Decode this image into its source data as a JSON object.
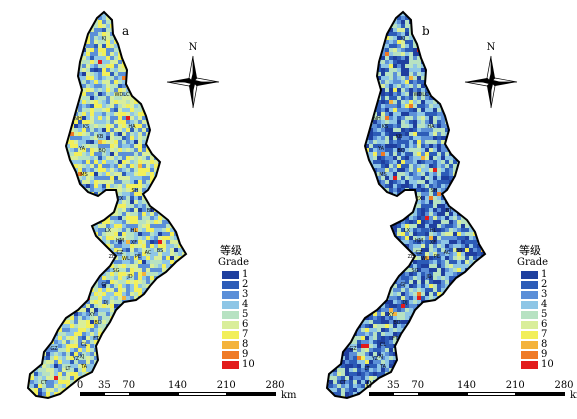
{
  "panels": [
    {
      "id": "a",
      "label": "a",
      "dominant_grades": [
        5,
        6,
        4,
        7,
        3
      ],
      "seed": 11,
      "place_codes": [
        "KJ",
        "WDLC",
        "NH",
        "KS",
        "KB",
        "HA",
        "YA",
        "BQ",
        "MS",
        "EX",
        "SH",
        "BT",
        "LX",
        "HL",
        "HM",
        "XF",
        "CZ",
        "ZB",
        "WL",
        "PE",
        "AC",
        "SG",
        "JD",
        "BS",
        "GJ",
        "DJ",
        "XY",
        "BD",
        "GZ",
        "CL",
        "FT",
        "XJ",
        "LT",
        "TA",
        "CT",
        "YZ"
      ]
    },
    {
      "id": "b",
      "label": "b",
      "dominant_grades": [
        3,
        2,
        4,
        1,
        5
      ],
      "seed": 29,
      "place_codes": [
        "KJ",
        "WDLC",
        "NH",
        "KS",
        "KB",
        "HA",
        "YA",
        "BQ",
        "MS",
        "EX",
        "SH",
        "BT",
        "LX",
        "HL",
        "HM",
        "XF",
        "CZ",
        "ZB",
        "WL",
        "PE",
        "AC",
        "SG",
        "JD",
        "BS",
        "GJ",
        "DJ",
        "XY",
        "BD",
        "GZ",
        "CL",
        "FT",
        "XJ",
        "LT",
        "TA",
        "CT",
        "YZ"
      ]
    }
  ],
  "compass": {
    "north_label": "N"
  },
  "legend": {
    "title_cn": "等级",
    "title_en": "Grade",
    "items": [
      {
        "label": "1",
        "color": "#1f3f9f"
      },
      {
        "label": "2",
        "color": "#2d5cb8"
      },
      {
        "label": "3",
        "color": "#5b8fd8"
      },
      {
        "label": "4",
        "color": "#8ec6e6"
      },
      {
        "label": "5",
        "color": "#b7e2c2"
      },
      {
        "label": "6",
        "color": "#d9ee9a"
      },
      {
        "label": "7",
        "color": "#f2ef5a"
      },
      {
        "label": "8",
        "color": "#f4b33c"
      },
      {
        "label": "9",
        "color": "#ef7a26"
      },
      {
        "label": "10",
        "color": "#e21b1b"
      }
    ]
  },
  "scalebar": {
    "ticks": [
      "0",
      "35",
      "70",
      "140",
      "210",
      "280"
    ],
    "tick_values": [
      0,
      35,
      70,
      140,
      210,
      280
    ],
    "unit": "km"
  }
}
